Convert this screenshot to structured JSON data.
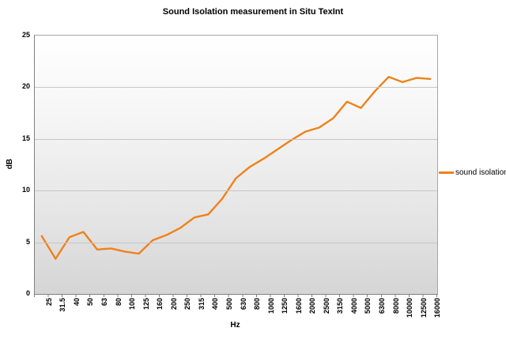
{
  "title": "Sound Isolation measurement  in Situ TexInt",
  "legend": {
    "label": "sound isolation"
  },
  "axes": {
    "x_title": "Hz",
    "y_title": "dB"
  },
  "colors": {
    "series_line": "#f08119",
    "gridline": "#c6c6c6",
    "plot_bg_top": "#ffffff",
    "plot_bg_bottom": "#d5d5d5"
  },
  "chart_data": {
    "type": "line",
    "title": "Sound Isolation measurement  in Situ TexInt",
    "xlabel": "Hz",
    "ylabel": "dB",
    "ylim": [
      0,
      25
    ],
    "yticks": [
      0,
      5,
      10,
      15,
      20,
      25
    ],
    "grid": true,
    "legend_position": "right",
    "categories": [
      "25",
      "31.5",
      "40",
      "50",
      "63",
      "80",
      "100",
      "125",
      "160",
      "200",
      "250",
      "315",
      "400",
      "500",
      "630",
      "800",
      "1000",
      "1250",
      "1600",
      "2000",
      "2500",
      "3150",
      "4000",
      "5000",
      "6300",
      "8000",
      "10000",
      "12500",
      "16000"
    ],
    "series": [
      {
        "name": "sound isolation",
        "color": "#f08119",
        "values": [
          5.6,
          3.4,
          5.5,
          6.0,
          4.3,
          4.4,
          4.1,
          3.9,
          5.2,
          5.7,
          6.4,
          7.4,
          7.7,
          9.2,
          11.2,
          12.3,
          13.1,
          14.0,
          14.9,
          15.7,
          16.1,
          17.0,
          18.6,
          18.0,
          19.6,
          21.0,
          20.5,
          20.9,
          20.8
        ]
      }
    ]
  }
}
